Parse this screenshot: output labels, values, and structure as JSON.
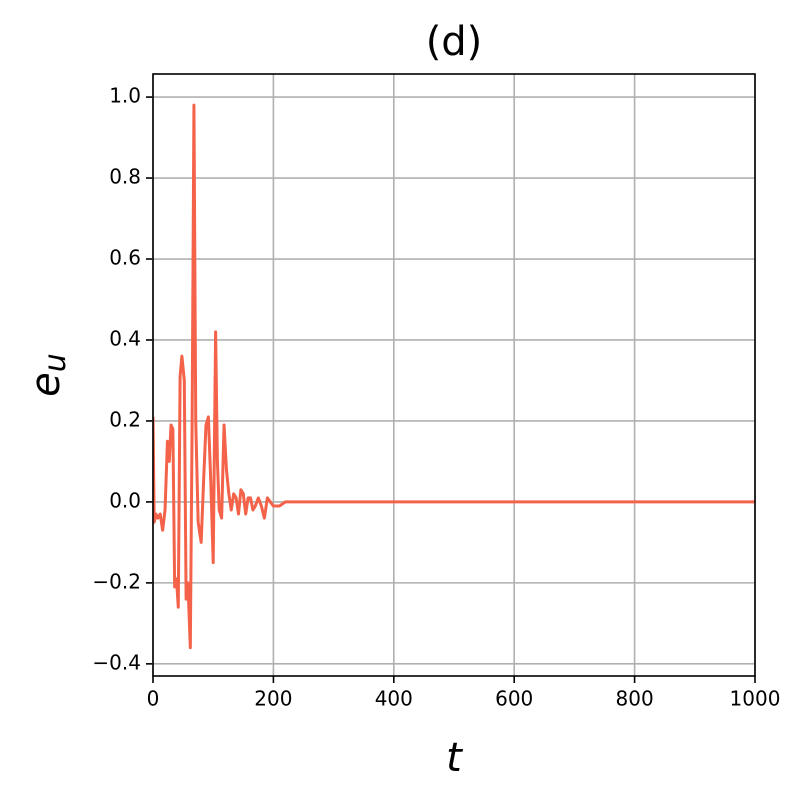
{
  "chart_data": {
    "type": "line",
    "title": "(d)",
    "xlabel": "t",
    "ylabel": "e",
    "ylabel_subscript": "u",
    "x": [
      0,
      2,
      5,
      8,
      12,
      16,
      20,
      24,
      27,
      30,
      33,
      36,
      39,
      42,
      45,
      48,
      52,
      55,
      58,
      62,
      65,
      68,
      71,
      75,
      80,
      84,
      88,
      92,
      96,
      100,
      104,
      107,
      110,
      114,
      118,
      122,
      126,
      130,
      134,
      138,
      142,
      146,
      150,
      154,
      158,
      162,
      166,
      170,
      175,
      180,
      185,
      190,
      195,
      200,
      210,
      220,
      1000
    ],
    "series": [
      {
        "color": "#f4624a",
        "values": [
          0.21,
          -0.05,
          -0.03,
          -0.04,
          -0.03,
          -0.07,
          -0.02,
          0.15,
          0.1,
          0.19,
          0.18,
          -0.21,
          -0.19,
          -0.26,
          0.31,
          0.36,
          0.3,
          -0.24,
          -0.2,
          -0.36,
          0.2,
          0.98,
          0.2,
          -0.05,
          -0.1,
          0.05,
          0.19,
          0.21,
          0.05,
          -0.15,
          0.42,
          0.1,
          -0.02,
          -0.04,
          0.19,
          0.08,
          0.02,
          -0.02,
          0.02,
          0.01,
          -0.03,
          0.03,
          0.02,
          -0.03,
          0.01,
          0.01,
          -0.02,
          -0.01,
          0.01,
          -0.01,
          -0.04,
          0.01,
          0.0,
          -0.01,
          -0.01,
          0,
          0
        ]
      }
    ],
    "xlim": [
      0,
      1000
    ],
    "xticks": [
      0,
      200,
      400,
      600,
      800,
      1000
    ],
    "ylim": [
      -0.43,
      1.057
    ],
    "yticks": [
      {
        "value": -0.4,
        "label": "−0.4"
      },
      {
        "value": -0.2,
        "label": "−0.2"
      },
      {
        "value": 0,
        "label": "0.0"
      },
      0.2,
      0.4,
      0.6,
      0.8,
      {
        "value": 1,
        "label": "1.0"
      }
    ],
    "grid": true
  }
}
